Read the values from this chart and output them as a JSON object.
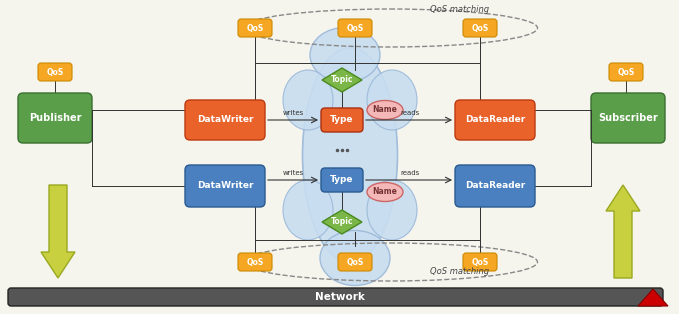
{
  "bg_color": "#f5f5ee",
  "title": "Network",
  "qos_matching_top": "QoS matching",
  "qos_matching_bottom": "QoS matching",
  "publisher_color": "#5a9e4a",
  "subscriber_color": "#5a9e4a",
  "datawriter_orange_color": "#e8622a",
  "datareader_orange_color": "#e8622a",
  "datawriter_blue_color": "#4a80c0",
  "datareader_blue_color": "#4a80c0",
  "type_orange_color": "#e8622a",
  "type_blue_color": "#4a80c0",
  "topic_color": "#7ab648",
  "name_color": "#f5b8b8",
  "qos_color": "#f5a623",
  "network_bar_color": "#555555",
  "network_text_color": "#ffffff",
  "cloud_color": "#c8ddf0",
  "lc": "#333333",
  "arrow_green": "#c8d040",
  "arrow_green_edge": "#9aa820"
}
